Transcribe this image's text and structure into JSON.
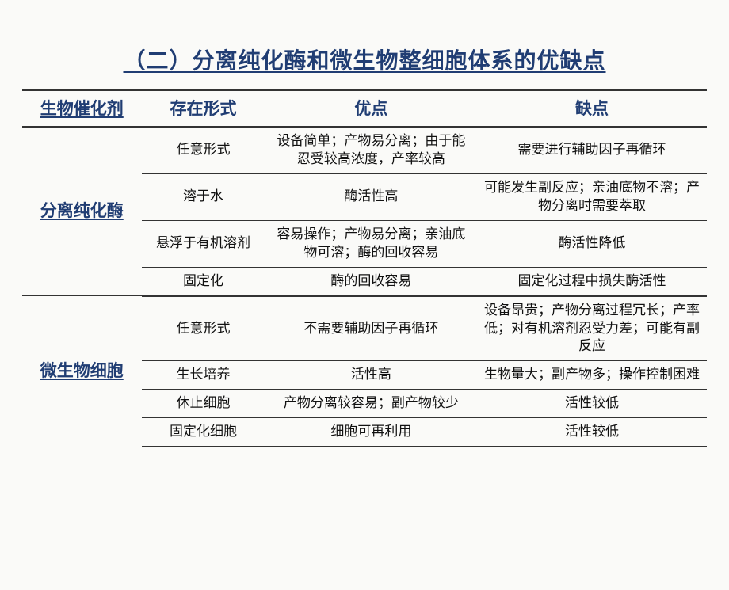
{
  "title": "（二）分离纯化酶和微生物整细胞体系的优缺点",
  "columns": {
    "c1": "生物催化剂",
    "c2": "存在形式",
    "c3": "优点",
    "c4": "缺点"
  },
  "groups": {
    "g1": {
      "label": "分离纯化酶",
      "rows": {
        "r1": {
          "form": "任意形式",
          "adv": "设备简单；产物易分离；由于能忍受较高浓度，产率较高",
          "dis": "需要进行辅助因子再循环"
        },
        "r2": {
          "form": "溶于水",
          "adv": "酶活性高",
          "dis": "可能发生副反应；亲油底物不溶；产物分离时需要萃取"
        },
        "r3": {
          "form": "悬浮于有机溶剂",
          "adv": "容易操作；产物易分离；亲油底物可溶；酶的回收容易",
          "dis": "酶活性降低"
        },
        "r4": {
          "form": "固定化",
          "adv": "酶的回收容易",
          "dis": "固定化过程中损失酶活性"
        }
      }
    },
    "g2": {
      "label": "微生物细胞",
      "rows": {
        "r1": {
          "form": "任意形式",
          "adv": "不需要辅助因子再循环",
          "dis": "设备昂贵；产物分离过程冗长；产率低；对有机溶剂忍受力差；可能有副反应"
        },
        "r2": {
          "form": "生长培养",
          "adv": "活性高",
          "dis": "生物量大；副产物多；操作控制困难"
        },
        "r3": {
          "form": "休止细胞",
          "adv": "产物分离较容易；副产物较少",
          "dis": "活性较低"
        },
        "r4": {
          "form": "固定化细胞",
          "adv": "细胞可再利用",
          "dis": "活性较低"
        }
      }
    }
  },
  "colors": {
    "heading": "#203d73",
    "text": "#111111",
    "background": "#fafaf8",
    "rule": "#333333"
  }
}
